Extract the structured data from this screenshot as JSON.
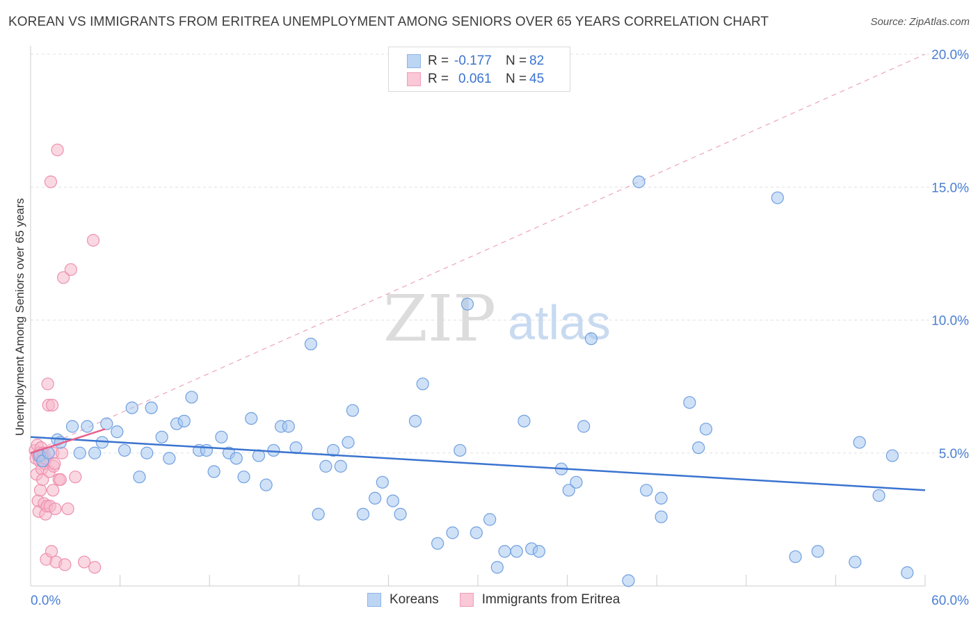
{
  "title": "KOREAN VS IMMIGRANTS FROM ERITREA UNEMPLOYMENT AMONG SENIORS OVER 65 YEARS CORRELATION CHART",
  "source": "Source: ZipAtlas.com",
  "watermark": {
    "zip": "ZIP",
    "atlas": "atlas"
  },
  "legend": {
    "rows": [
      {
        "r_label": "R =",
        "r_value": "-0.177",
        "n_label": "N =",
        "n_value": "82",
        "color": "#a8c8f0"
      },
      {
        "r_label": "R =",
        "r_value": "0.061",
        "n_label": "N =",
        "n_value": "45",
        "color": "#f5b8cb"
      }
    ]
  },
  "bottom_legend": {
    "korean": "Koreans",
    "eritrea": "Immigrants from Eritrea"
  },
  "colors": {
    "korean": "#3a73d0",
    "korean_fill": "#a8c8f0",
    "eritrea": "#e8608c",
    "eritrea_fill": "#f5b8cb",
    "tick_label": "#4a7fd4"
  },
  "chart_data": {
    "type": "scatter",
    "title": "KOREAN VS IMMIGRANTS FROM ERITREA UNEMPLOYMENT AMONG SENIORS OVER 65 YEARS CORRELATION CHART",
    "xlabel": "",
    "ylabel": "Unemployment Among Seniors over 65 years",
    "xlim": [
      0,
      60
    ],
    "ylim": [
      0,
      20
    ],
    "x_tick_labels": [
      "0.0%",
      "60.0%"
    ],
    "y_tick_labels": [
      "5.0%",
      "10.0%",
      "15.0%",
      "20.0%"
    ],
    "y_ticks": [
      5,
      10,
      15,
      20
    ],
    "grid": true,
    "series": [
      {
        "name": "Koreans",
        "points": [
          [
            0.6,
            4.9
          ],
          [
            0.8,
            4.7
          ],
          [
            1.2,
            5.0
          ],
          [
            1.8,
            5.5
          ],
          [
            2.0,
            5.4
          ],
          [
            2.8,
            6.0
          ],
          [
            3.3,
            5.0
          ],
          [
            3.8,
            6.0
          ],
          [
            4.3,
            5.0
          ],
          [
            4.8,
            5.4
          ],
          [
            5.1,
            6.1
          ],
          [
            5.8,
            5.8
          ],
          [
            6.3,
            5.1
          ],
          [
            6.8,
            6.7
          ],
          [
            7.3,
            4.1
          ],
          [
            7.8,
            5.0
          ],
          [
            8.1,
            6.7
          ],
          [
            8.8,
            5.6
          ],
          [
            9.3,
            4.8
          ],
          [
            9.8,
            6.1
          ],
          [
            10.3,
            6.2
          ],
          [
            10.8,
            7.1
          ],
          [
            11.3,
            5.1
          ],
          [
            11.8,
            5.1
          ],
          [
            12.3,
            4.3
          ],
          [
            12.8,
            5.6
          ],
          [
            13.3,
            5.0
          ],
          [
            13.8,
            4.8
          ],
          [
            14.3,
            4.1
          ],
          [
            14.8,
            6.3
          ],
          [
            15.3,
            4.9
          ],
          [
            15.8,
            3.8
          ],
          [
            16.3,
            5.1
          ],
          [
            16.8,
            6.0
          ],
          [
            17.3,
            6.0
          ],
          [
            17.8,
            5.2
          ],
          [
            18.8,
            9.1
          ],
          [
            19.3,
            2.7
          ],
          [
            19.8,
            4.5
          ],
          [
            20.3,
            5.1
          ],
          [
            20.8,
            4.5
          ],
          [
            21.3,
            5.4
          ],
          [
            21.6,
            6.6
          ],
          [
            22.3,
            2.7
          ],
          [
            23.1,
            3.3
          ],
          [
            23.6,
            3.9
          ],
          [
            24.3,
            3.2
          ],
          [
            24.8,
            2.7
          ],
          [
            25.8,
            6.2
          ],
          [
            26.3,
            7.6
          ],
          [
            27.3,
            1.6
          ],
          [
            28.3,
            2.0
          ],
          [
            28.8,
            5.1
          ],
          [
            29.3,
            10.6
          ],
          [
            29.9,
            2.0
          ],
          [
            30.8,
            2.5
          ],
          [
            31.3,
            0.7
          ],
          [
            31.8,
            1.3
          ],
          [
            32.6,
            1.3
          ],
          [
            33.1,
            6.2
          ],
          [
            33.6,
            1.4
          ],
          [
            34.1,
            1.3
          ],
          [
            35.6,
            4.4
          ],
          [
            36.1,
            3.6
          ],
          [
            36.6,
            3.9
          ],
          [
            37.1,
            6.0
          ],
          [
            37.6,
            9.3
          ],
          [
            40.1,
            0.2
          ],
          [
            40.8,
            15.2
          ],
          [
            41.3,
            3.6
          ],
          [
            42.3,
            3.3
          ],
          [
            42.3,
            2.6
          ],
          [
            44.2,
            6.9
          ],
          [
            44.8,
            5.2
          ],
          [
            45.3,
            5.9
          ],
          [
            50.1,
            14.6
          ],
          [
            51.3,
            1.1
          ],
          [
            52.8,
            1.3
          ],
          [
            55.3,
            0.9
          ],
          [
            55.6,
            5.4
          ],
          [
            56.9,
            3.4
          ],
          [
            57.8,
            4.9
          ],
          [
            58.8,
            0.5
          ]
        ],
        "trend": {
          "x": [
            0,
            60
          ],
          "y": [
            5.6,
            3.6
          ]
        }
      },
      {
        "name": "Immigrants from Eritrea",
        "points": [
          [
            0.3,
            5.1
          ],
          [
            0.35,
            4.8
          ],
          [
            0.4,
            4.2
          ],
          [
            0.45,
            5.3
          ],
          [
            0.5,
            3.2
          ],
          [
            0.5,
            4.9
          ],
          [
            0.55,
            2.8
          ],
          [
            0.6,
            4.7
          ],
          [
            0.6,
            5.0
          ],
          [
            0.65,
            3.6
          ],
          [
            0.7,
            5.2
          ],
          [
            0.75,
            4.4
          ],
          [
            0.8,
            4.0
          ],
          [
            0.85,
            5.0
          ],
          [
            0.9,
            3.1
          ],
          [
            0.95,
            4.6
          ],
          [
            1.0,
            4.8
          ],
          [
            1.0,
            2.7
          ],
          [
            1.05,
            1.0
          ],
          [
            1.1,
            3.0
          ],
          [
            1.15,
            7.6
          ],
          [
            1.2,
            6.8
          ],
          [
            1.25,
            4.3
          ],
          [
            1.3,
            3.0
          ],
          [
            1.35,
            15.2
          ],
          [
            1.4,
            1.3
          ],
          [
            1.45,
            6.8
          ],
          [
            1.5,
            5.0
          ],
          [
            1.5,
            3.6
          ],
          [
            1.55,
            4.5
          ],
          [
            1.6,
            4.6
          ],
          [
            1.65,
            2.9
          ],
          [
            1.7,
            0.9
          ],
          [
            1.8,
            16.4
          ],
          [
            1.9,
            4.0
          ],
          [
            2.0,
            4.0
          ],
          [
            2.1,
            5.0
          ],
          [
            2.2,
            11.6
          ],
          [
            2.3,
            0.8
          ],
          [
            2.5,
            2.9
          ],
          [
            2.7,
            11.9
          ],
          [
            3.0,
            4.1
          ],
          [
            3.6,
            0.9
          ],
          [
            4.2,
            13.0
          ],
          [
            4.3,
            0.7
          ]
        ],
        "trend": {
          "x": [
            0,
            5
          ],
          "y": [
            5.0,
            5.9
          ]
        },
        "trend_extended": {
          "x": [
            0,
            60
          ],
          "y": [
            5.0,
            20.0
          ]
        }
      }
    ]
  }
}
